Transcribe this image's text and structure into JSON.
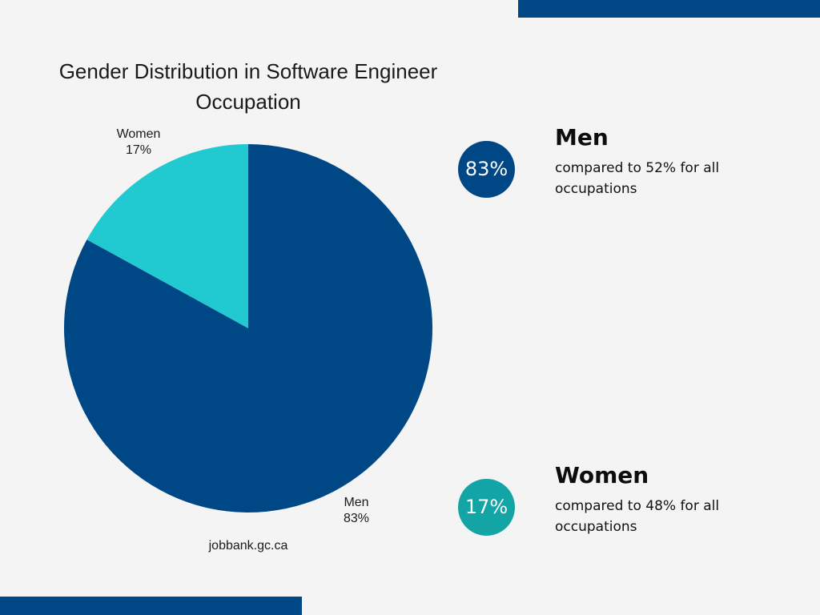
{
  "chart_data": {
    "type": "pie",
    "title": "Gender Distribution in Software Engineer Occupation",
    "categories": [
      "Women",
      "Men"
    ],
    "values": [
      17,
      83
    ],
    "labels": [
      "17%",
      "83%"
    ],
    "colors": [
      "#21c9d0",
      "#004786"
    ],
    "start": "12 o'clock",
    "direction": "counter-clockwise for Women, remainder Men",
    "source": "jobbank.gc.ca"
  },
  "stats": {
    "men": {
      "badge": "83%",
      "heading": "Men",
      "description": "compared to 52% for all occupations",
      "color": "#004786"
    },
    "women": {
      "badge": "17%",
      "heading": "Women",
      "description": "compared to 48% for all occupations",
      "color": "#13a4a6"
    }
  },
  "decor": {
    "accent_color": "#004786",
    "background": "#f4f4f4"
  }
}
